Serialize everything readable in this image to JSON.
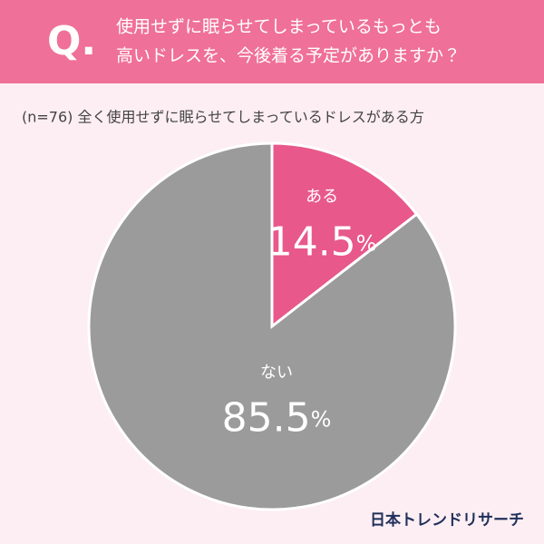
{
  "header": {
    "mark": "Q.",
    "question": [
      "使用せずに眠らせてしまっているもっとも",
      "高いドレスを、今後着る予定がありますか？"
    ]
  },
  "chart_data": {
    "type": "pie",
    "subtitle": "(n=76) 全く使用せずに眠らせてしまっているドレスがある方",
    "categories": [
      "ある",
      "ない"
    ],
    "values": [
      14.5,
      85.5
    ],
    "value_labels": [
      "14.5%",
      "85.5%"
    ],
    "colors": [
      "#e8588a",
      "#9b9b9b"
    ]
  },
  "footer": {
    "logo": "日本トレンドリサーチ"
  }
}
